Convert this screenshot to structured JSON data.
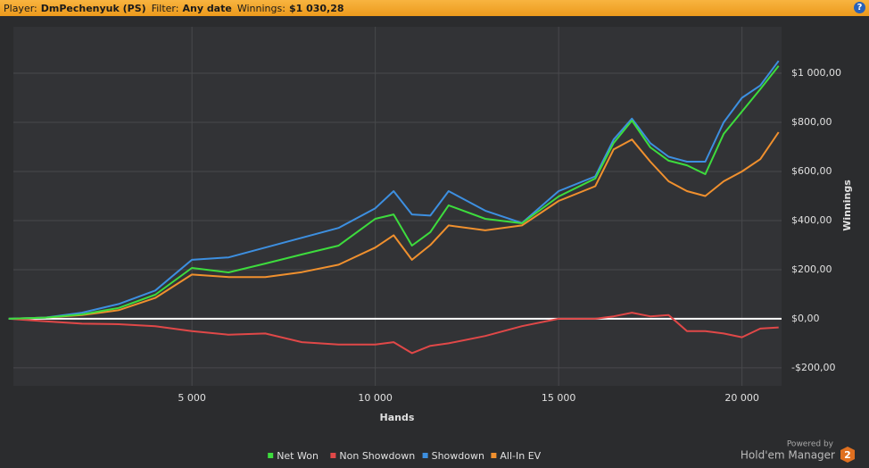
{
  "header": {
    "player_label": "Player:",
    "player": "DmPechenyuk (PS)",
    "filter_label": "Filter:",
    "filter": "Any date",
    "winnings_label": "Winnings:",
    "winnings": "$1 030,28",
    "help": "?"
  },
  "chart_data": {
    "type": "line",
    "x_label": "Hands",
    "y_label": "Winnings",
    "x": [
      0,
      1000,
      2000,
      3000,
      4000,
      5000,
      6000,
      7000,
      8000,
      9000,
      10000,
      10500,
      11000,
      11500,
      12000,
      13000,
      14000,
      15000,
      16000,
      16500,
      17000,
      17500,
      18000,
      18500,
      19000,
      19500,
      20000,
      20500,
      21000
    ],
    "series": [
      {
        "name": "Net Won",
        "color": "#3ddc3d",
        "values": [
          0,
          5,
          18,
          44,
          98,
          207,
          189,
          225,
          262,
          298,
          407,
          425,
          298,
          353,
          462,
          407,
          389,
          498,
          571,
          716,
          807,
          698,
          644,
          625,
          589,
          753,
          844,
          935,
          1030
        ]
      },
      {
        "name": "Non Showdown",
        "color": "#e04848",
        "values": [
          0,
          -10,
          -20,
          -22,
          -30,
          -50,
          -65,
          -60,
          -95,
          -105,
          -105,
          -95,
          -140,
          -110,
          -100,
          -70,
          -30,
          0,
          0,
          10,
          25,
          10,
          15,
          -50,
          -50,
          -60,
          -75,
          -40,
          -35
        ]
      },
      {
        "name": "Showdown",
        "color": "#3d8fe0",
        "values": [
          0,
          5,
          25,
          60,
          115,
          240,
          250,
          290,
          330,
          370,
          450,
          520,
          425,
          420,
          520,
          440,
          390,
          520,
          580,
          730,
          815,
          715,
          660,
          640,
          640,
          800,
          900,
          950,
          1050
        ]
      },
      {
        "name": "All-In EV",
        "color": "#f0902e",
        "values": [
          0,
          5,
          15,
          35,
          85,
          180,
          170,
          170,
          190,
          220,
          290,
          340,
          240,
          300,
          380,
          360,
          380,
          480,
          540,
          690,
          730,
          640,
          560,
          520,
          500,
          560,
          600,
          650,
          760
        ]
      }
    ],
    "xlim": [
      130,
      21080
    ],
    "ylim": [
      -273,
      1189
    ],
    "xticks": [
      {
        "value": 5000,
        "label": "5 000"
      },
      {
        "value": 10000,
        "label": "10 000"
      },
      {
        "value": 15000,
        "label": "15 000"
      },
      {
        "value": 20000,
        "label": "20 000"
      }
    ],
    "yticks": [
      {
        "value": -200,
        "label": "-$200,00"
      },
      {
        "value": 0,
        "label": "$0,00"
      },
      {
        "value": 200,
        "label": "$200,00"
      },
      {
        "value": 400,
        "label": "$400,00"
      },
      {
        "value": 600,
        "label": "$600,00"
      },
      {
        "value": 800,
        "label": "$800,00"
      },
      {
        "value": 1000,
        "label": "$1 000,00"
      }
    ],
    "grid": true,
    "legend": "bottom"
  },
  "branding": {
    "powered": "Powered by",
    "product": "Hold'em Manager",
    "version": "2"
  }
}
